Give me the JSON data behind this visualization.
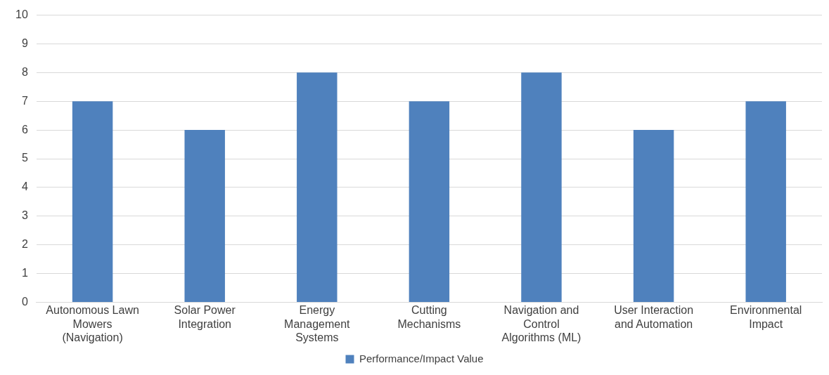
{
  "chart_data": {
    "type": "bar",
    "categories": [
      "Autonomous Lawn Mowers (Navigation)",
      "Solar Power Integration",
      "Energy Management Systems",
      "Cutting Mechanisms",
      "Navigation and Control Algorithms (ML)",
      "User Interaction and Automation",
      "Environmental Impact"
    ],
    "series": [
      {
        "name": "Performance/Impact Value",
        "color": "#4f81bd",
        "values": [
          7,
          6,
          8,
          7,
          8,
          6,
          7
        ]
      }
    ],
    "ylim": [
      0,
      10
    ],
    "yticks": [
      0,
      1,
      2,
      3,
      4,
      5,
      6,
      7,
      8,
      9,
      10
    ],
    "grid": "y",
    "legend": "bottom"
  }
}
